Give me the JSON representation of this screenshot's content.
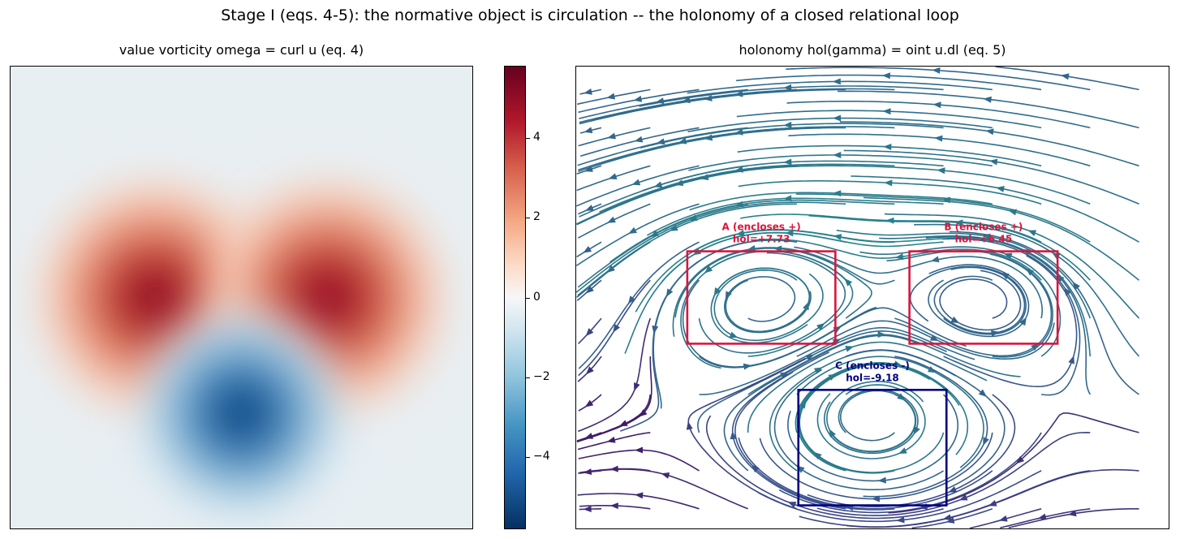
{
  "figure": {
    "suptitle": "Stage I (eqs. 4-5): the normative object is circulation -- the holonomy of a closed relational loop"
  },
  "chart_data": [
    {
      "type": "heatmap",
      "title": "value vorticity  omega = curl u  (eq. 4)",
      "colormap": "RdBu_r",
      "colorbar": {
        "range": [
          -5.8,
          5.8
        ],
        "ticks": [
          4,
          2,
          0,
          -2,
          -4
        ],
        "tick_labels": [
          "4",
          "2",
          "0",
          "−2",
          "−4"
        ]
      },
      "vortices": [
        {
          "name": "A",
          "x": -0.75,
          "y": 0.0,
          "peak": 5.8
        },
        {
          "name": "B",
          "x": 0.75,
          "y": 0.0,
          "peak": 4.9
        },
        {
          "name": "C",
          "x": 0.0,
          "y": -1.0,
          "peak": -5.8
        }
      ],
      "xlim": [
        -2,
        2
      ],
      "ylim": [
        -2,
        2
      ],
      "grid": false,
      "axes_ticks": false
    },
    {
      "type": "streamplot",
      "title": "holonomy  hol(gamma) = oint u.dl  (eq. 5)",
      "colormap": "viridis",
      "xlim": [
        -2,
        2
      ],
      "ylim": [
        -2,
        2
      ],
      "loops": [
        {
          "name": "A",
          "label": "A (encloses +)",
          "value_label": "hol=+7.73",
          "holonomy": 7.73,
          "x": [
            -1.25,
            -0.25
          ],
          "y": [
            -0.4,
            0.4
          ],
          "color": "#dc143c"
        },
        {
          "name": "B",
          "label": "B (encloses +)",
          "value_label": "hol=+6.45",
          "holonomy": 6.45,
          "x": [
            0.25,
            1.25
          ],
          "y": [
            -0.4,
            0.4
          ],
          "color": "#dc143c"
        },
        {
          "name": "C",
          "label": "C (encloses -)",
          "value_label": "hol=-9.18",
          "holonomy": -9.18,
          "x": [
            -0.5,
            0.5
          ],
          "y": [
            -1.8,
            -0.8
          ],
          "color": "#000080"
        }
      ]
    }
  ]
}
